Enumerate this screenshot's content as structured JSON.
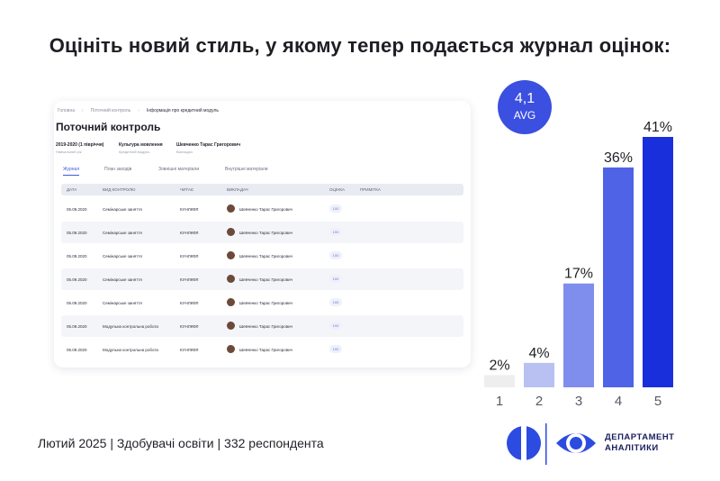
{
  "headline": "Оцініть новий стиль, у якому тепер подається журнал оцінок:",
  "journal": {
    "breadcrumbs": [
      "Головна",
      "Поточний контроль",
      "Інформація про кредитний модуль"
    ],
    "title": "Поточний контроль",
    "meta": [
      {
        "value": "2019-2020 (1 півріччя)",
        "key": "Навчальний рік"
      },
      {
        "value": "Культура мовлення",
        "key": "Кредитний модуль"
      },
      {
        "value": "Шевченко Тарас Григорович",
        "key": "Викладач"
      }
    ],
    "tabs": [
      "Журнал",
      "План заходів",
      "Зовнішні матеріали",
      "Внутрішні матеріали"
    ],
    "columns": [
      "ДАТА",
      "ВИД КОНТРОЛЮ",
      "ЧИТАЄ",
      "ВИКЛАДАЧ",
      "ОЦІНКА",
      "ПРИМІТКА"
    ],
    "rows": [
      {
        "date": "05.09.2020",
        "type": "Семінарське заняття",
        "reader": "КУНЛКФЛ",
        "teacher": "Шевченко Тарас Григорович",
        "grade": "100"
      },
      {
        "date": "05.09.2020",
        "type": "Семінарське заняття",
        "reader": "КУНЛКФЛ",
        "teacher": "Шевченко Тарас Григорович",
        "grade": "100"
      },
      {
        "date": "05.09.2020",
        "type": "Семінарське заняття",
        "reader": "КУНЛКФЛ",
        "teacher": "Шевченко Тарас Григорович",
        "grade": "100"
      },
      {
        "date": "05.09.2020",
        "type": "Семінарське заняття",
        "reader": "КУНЛКФЛ",
        "teacher": "Шевченко Тарас Григорович",
        "grade": "100"
      },
      {
        "date": "05.09.2020",
        "type": "Семінарське заняття",
        "reader": "КУНЛКФЛ",
        "teacher": "Шевченко Тарас Григорович",
        "grade": "100"
      },
      {
        "date": "05.09.2020",
        "type": "Модульна контрольна робота",
        "reader": "КУНЛКФЛ",
        "teacher": "Шевченко Тарас Григорович",
        "grade": "100"
      },
      {
        "date": "05.09.2020",
        "type": "Модульна контрольна робота",
        "reader": "КУНЛКФЛ",
        "teacher": "Шевченко Тарас Григорович",
        "grade": "100"
      }
    ]
  },
  "avg": {
    "value": "4,1",
    "label": "AVG"
  },
  "chart_data": {
    "type": "bar",
    "categories": [
      "1",
      "2",
      "3",
      "4",
      "5"
    ],
    "values": [
      2,
      4,
      17,
      36,
      41
    ],
    "value_labels": [
      "2%",
      "4%",
      "17%",
      "36%",
      "41%"
    ],
    "colors": [
      "#eeeeee",
      "#b9c1f2",
      "#7f8ded",
      "#4f63e6",
      "#1a2fdc"
    ],
    "ylim": [
      0,
      41
    ],
    "grid": false,
    "legend": "none"
  },
  "footer": "Лютий 2025 | Здобувачі освіти | 332 респондента",
  "logo": {
    "line1": "ДЕПАРТАМЕНТ",
    "line2": "АНАЛІТИКИ",
    "color": "#1a1f5e"
  }
}
